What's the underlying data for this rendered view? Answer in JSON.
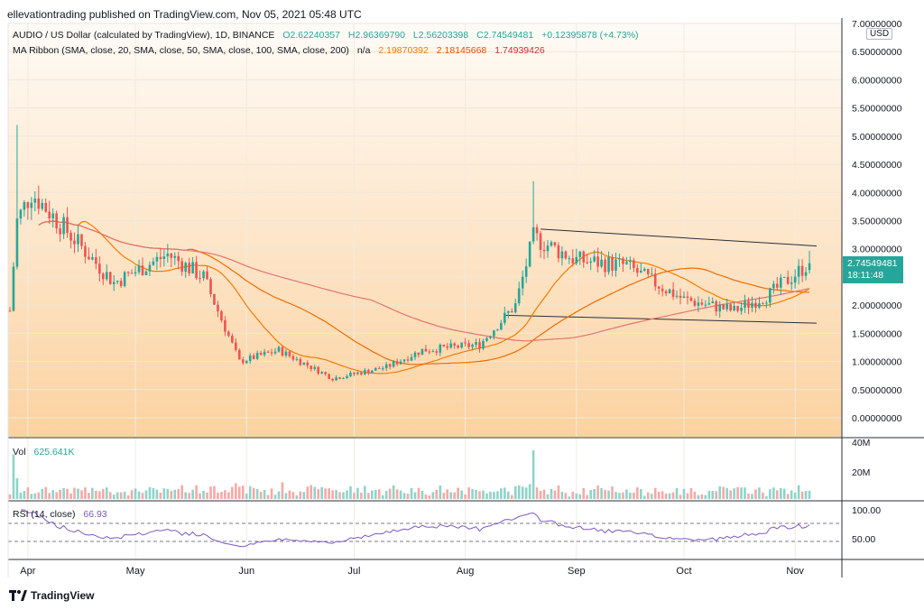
{
  "header": {
    "publisher_line": "ellevationtrading published on TradingView.com, Nov 05, 2021 05:48 UTC"
  },
  "legend": {
    "symbol": "AUDIO / US Dollar (calculated by TradingView), 1D, BINANCE",
    "open": "O2.62240357",
    "high": "H2.96369790",
    "low": "L2.56203398",
    "close": "C2.74549481",
    "change": "+0.12395878 (+4.73%)",
    "ma_title": "MA Ribbon (SMA, close, 20, SMA, close, 50, SMA, close, 100, SMA, close, 200)",
    "ma_na": "n/a",
    "ma20": "2.19870392",
    "ma50": "2.18145668",
    "ma100": "1.74939426"
  },
  "volume": {
    "label": "Vol",
    "value": "625.641K"
  },
  "rsi": {
    "label": "RSI (14, close)",
    "value": "66.93"
  },
  "currency_badge": "USD",
  "last_price": {
    "value": "2.74549481",
    "countdown": "18:11:48"
  },
  "footer": {
    "brand": "TradingView"
  },
  "colors": {
    "up": "#26a69a",
    "down": "#ef5350",
    "bg_top": "#fefaf4",
    "bg_bottom": "#fcd6a8",
    "ma20": "#f57c00",
    "ma50": "#ef6c00",
    "ma100": "#e57373",
    "rsi": "#7e57c2"
  },
  "chart_data": {
    "type": "candlestick",
    "price_axis": {
      "ticks": [
        "7.00000000",
        "6.50000000",
        "6.00000000",
        "5.50000000",
        "5.00000000",
        "4.50000000",
        "4.00000000",
        "3.50000000",
        "3.00000000",
        "2.50000000",
        "2.00000000",
        "1.50000000",
        "1.00000000",
        "0.50000000",
        "0.00000000"
      ],
      "ylim": [
        -0.2,
        7.0
      ]
    },
    "time_axis": {
      "ticks": [
        "Apr",
        "May",
        "Jun",
        "Jul",
        "Aug",
        "Sep",
        "Oct",
        "Nov"
      ]
    },
    "volume_axis": {
      "ticks": [
        "40M",
        "20M"
      ]
    },
    "rsi_axis": {
      "ticks": [
        "100.00",
        "50.00"
      ],
      "bands": [
        70,
        30
      ]
    },
    "key_points": [
      {
        "date": "Mar 27",
        "close": 1.9
      },
      {
        "date": "Mar 29",
        "close": 3.5
      },
      {
        "date": "Apr 2",
        "close": 4.0
      },
      {
        "date": "Apr 15",
        "close": 3.1
      },
      {
        "date": "Apr 25",
        "close": 2.4
      },
      {
        "date": "May 1",
        "close": 2.6
      },
      {
        "date": "May 10",
        "close": 2.9
      },
      {
        "date": "May 20",
        "close": 2.5
      },
      {
        "date": "May 30",
        "close": 1.0
      },
      {
        "date": "Jun 10",
        "close": 1.2
      },
      {
        "date": "Jun 25",
        "close": 0.7
      },
      {
        "date": "Jul 10",
        "close": 0.9
      },
      {
        "date": "Jul 20",
        "close": 1.2
      },
      {
        "date": "Aug 5",
        "close": 1.3
      },
      {
        "date": "Aug 15",
        "close": 2.0
      },
      {
        "date": "Aug 20",
        "close": 3.2
      },
      {
        "date": "Sep 1",
        "close": 2.8
      },
      {
        "date": "Sep 15",
        "close": 2.7
      },
      {
        "date": "Sep 20",
        "close": 2.5
      },
      {
        "date": "Oct 1",
        "close": 2.1
      },
      {
        "date": "Oct 15",
        "close": 1.9
      },
      {
        "date": "Oct 25",
        "close": 2.2
      },
      {
        "date": "Nov 5",
        "close": 2.75
      }
    ],
    "trendlines": [
      {
        "name": "upper",
        "from": {
          "date": "Aug 22",
          "value": 3.35
        },
        "to": {
          "date": "Nov 7",
          "value": 3.05
        }
      },
      {
        "name": "lower",
        "from": {
          "date": "Aug 12",
          "value": 1.82
        },
        "to": {
          "date": "Nov 7",
          "value": 1.68
        }
      }
    ]
  }
}
